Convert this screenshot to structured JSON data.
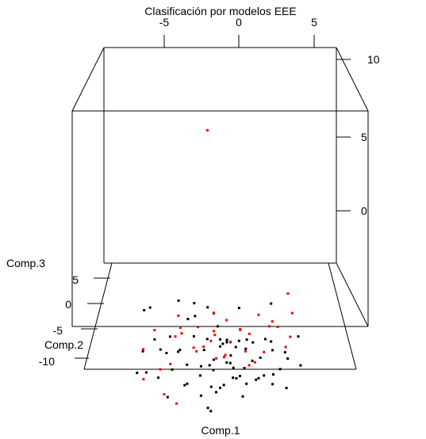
{
  "chart_data": {
    "type": "scatter",
    "title": "Clasificación por modelos EEE",
    "xlabel": "Comp.1",
    "ylabel": "Comp.2",
    "zlabel": "Comp.3",
    "xlim": [
      -10,
      10
    ],
    "ylim": [
      -10,
      10
    ],
    "zlim": [
      -5,
      10
    ],
    "x_ticks": [
      "-5",
      "0",
      "5"
    ],
    "y_ticks": [
      "5",
      "0",
      "-5",
      "-10"
    ],
    "z_ticks": [
      "10",
      "5",
      "0"
    ],
    "box": true,
    "grid": false,
    "series": [
      {
        "color": "#000000",
        "points": [
          [
            -2.0,
            1.0,
            0.5
          ],
          [
            3.8,
            -2.0,
            1.5
          ],
          [
            -0.5,
            2.0,
            -0.5
          ],
          [
            -5.7,
            -1.5,
            0.9
          ],
          [
            -5.5,
            2.5,
            -0.3
          ],
          [
            -3.3,
            3.5,
            -0.2
          ],
          [
            -2.4,
            -2.0,
            0.5
          ],
          [
            1.5,
            3.0,
            -0.5
          ],
          [
            -4.0,
            -2.0,
            -1.7
          ],
          [
            -5.0,
            0.0,
            -1.5
          ],
          [
            -4.6,
            1.0,
            -2.5
          ],
          [
            -3.2,
            0.0,
            -2.3
          ],
          [
            -2.0,
            3.5,
            -1.2
          ],
          [
            -2.0,
            0.0,
            -1.3
          ],
          [
            -1.2,
            -2.0,
            -1.5
          ],
          [
            -1.0,
            1.5,
            -2.0
          ],
          [
            0.0,
            0.0,
            -1.5
          ],
          [
            -0.2,
            4.5,
            -2.2
          ],
          [
            0.2,
            -2.0,
            -1.1
          ],
          [
            0.0,
            1.0,
            -2.3
          ],
          [
            0.5,
            -2.0,
            -1.0
          ],
          [
            0.8,
            1.5,
            -2.2
          ],
          [
            1.2,
            0.0,
            -2.0
          ],
          [
            1.5,
            3.5,
            -2.8
          ],
          [
            1.0,
            -1.0,
            -3.0
          ],
          [
            2.0,
            2.0,
            -2.8
          ],
          [
            2.5,
            0.0,
            -1.7
          ],
          [
            3.0,
            -2.0,
            -2.0
          ],
          [
            3.5,
            1.5,
            -2.0
          ],
          [
            4.0,
            0.0,
            -2.2
          ],
          [
            4.0,
            2.5,
            -2.5
          ],
          [
            5.1,
            -1.0,
            -2.4
          ],
          [
            6.0,
            -2.0,
            -2.5
          ],
          [
            6.1,
            2.0,
            -2.0
          ],
          [
            -1.5,
            -1.0,
            -3.5
          ],
          [
            -0.5,
            2.0,
            -3.5
          ],
          [
            0.5,
            0.0,
            -3.0
          ],
          [
            1.5,
            -0.5,
            -3.7
          ],
          [
            2.5,
            1.5,
            -3.4
          ],
          [
            3.3,
            -1.0,
            -3.5
          ],
          [
            4.6,
            0.5,
            -3.6
          ],
          [
            5.1,
            2.5,
            -3.2
          ],
          [
            -6.1,
            3.0,
            -3.3
          ],
          [
            -3.7,
            1.0,
            -3.8
          ],
          [
            -2.5,
            -0.5,
            -4.2
          ],
          [
            -1.5,
            2.5,
            -4.1
          ],
          [
            -0.3,
            -1.5,
            -4.4
          ],
          [
            1.0,
            1.5,
            -4.5
          ],
          [
            2.0,
            -0.5,
            -4.2
          ],
          [
            3.0,
            2.0,
            -4.7
          ],
          [
            4.0,
            0.0,
            -4.4
          ],
          [
            5.0,
            -1.0,
            -4.3
          ],
          [
            -6.3,
            -0.5,
            -3.5
          ],
          [
            -5.8,
            2.5,
            -4.5
          ],
          [
            -4.0,
            4.0,
            -2.7
          ],
          [
            -3.0,
            -2.0,
            -1.5
          ],
          [
            -1.0,
            4.0,
            -0.8
          ],
          [
            0.5,
            -3.0,
            -0.5
          ],
          [
            2.8,
            2.0,
            -4.8
          ],
          [
            -0.5,
            -2.0,
            -2.8
          ],
          [
            1.8,
            -2.5,
            -2.5
          ],
          [
            0.8,
            2.8,
            -4.0
          ],
          [
            -2.8,
            3.0,
            -5.5
          ],
          [
            -0.7,
            3.0,
            -5.6
          ],
          [
            1.3,
            4.0,
            -5.4
          ],
          [
            4.2,
            3.0,
            -4.8
          ],
          [
            0.3,
            4.5,
            -6.0
          ],
          [
            1.8,
            3.8,
            -6.5
          ],
          [
            -0.7,
            -1.0,
            -5.8
          ],
          [
            -1.5,
            2.5,
            -6.0
          ],
          [
            -5.0,
            5.0,
            -5.7
          ],
          [
            0.0,
            6.0,
            -6.7
          ],
          [
            -2.5,
            -1.0,
            -2.8
          ],
          [
            -0.8,
            -0.5,
            -3.0
          ],
          [
            2.0,
            -1.5,
            -1.0
          ],
          [
            0.8,
            -1.0,
            -2.2
          ],
          [
            -4.3,
            6.0,
            -7.3
          ],
          [
            -1.0,
            6.0,
            -8.0
          ]
        ]
      },
      {
        "color": "#ff0000",
        "points": [
          [
            -1.0,
            3.0,
            11.0
          ],
          [
            4.3,
            -2.0,
            0.0
          ],
          [
            5.5,
            0.0,
            0.2
          ],
          [
            -3.3,
            3.0,
            -1.0
          ],
          [
            -0.5,
            1.5,
            -0.3
          ],
          [
            1.5,
            -1.0,
            -0.5
          ],
          [
            3.0,
            2.0,
            -0.6
          ],
          [
            -5.0,
            0.0,
            -0.9
          ],
          [
            -3.0,
            -1.0,
            -0.4
          ],
          [
            -1.7,
            0.0,
            -0.7
          ],
          [
            -0.4,
            -1.5,
            -0.7
          ],
          [
            0.5,
            1.0,
            -0.6
          ],
          [
            1.5,
            -2.0,
            -0.2
          ],
          [
            2.2,
            -1.0,
            -0.8
          ],
          [
            3.8,
            1.0,
            -1.0
          ],
          [
            4.1,
            2.5,
            -1.2
          ],
          [
            -3.0,
            2.0,
            -1.8
          ],
          [
            -2.0,
            -1.0,
            -1.7
          ],
          [
            -0.7,
            0.0,
            -1.6
          ],
          [
            -0.5,
            3.0,
            -2.0
          ],
          [
            0.3,
            -1.0,
            -2.3
          ],
          [
            0.8,
            1.0,
            -2.0
          ],
          [
            -5.8,
            -1.0,
            -1.8
          ],
          [
            5.0,
            0.0,
            -2.0
          ],
          [
            5.5,
            2.5,
            -2.2
          ],
          [
            -3.5,
            2.0,
            -2.0
          ],
          [
            -1.8,
            -0.5,
            -2.1
          ],
          [
            -1.3,
            3.0,
            -3.0
          ],
          [
            -0.3,
            0.5,
            -2.9
          ],
          [
            0.4,
            2.0,
            -3.2
          ],
          [
            2.2,
            -0.5,
            -3.0
          ],
          [
            2.7,
            1.5,
            -3.5
          ],
          [
            3.5,
            4.0,
            -3.7
          ],
          [
            2.0,
            3.0,
            -3.3
          ],
          [
            -3.8,
            0.0,
            -3.1
          ],
          [
            -4.7,
            2.5,
            -4.3
          ],
          [
            -6.2,
            5.0,
            -5.8
          ],
          [
            -4.5,
            4.5,
            -6.6
          ],
          [
            -3.5,
            4.5,
            -7.2
          ],
          [
            5.0,
            -3.0,
            2.5
          ]
        ]
      }
    ]
  }
}
